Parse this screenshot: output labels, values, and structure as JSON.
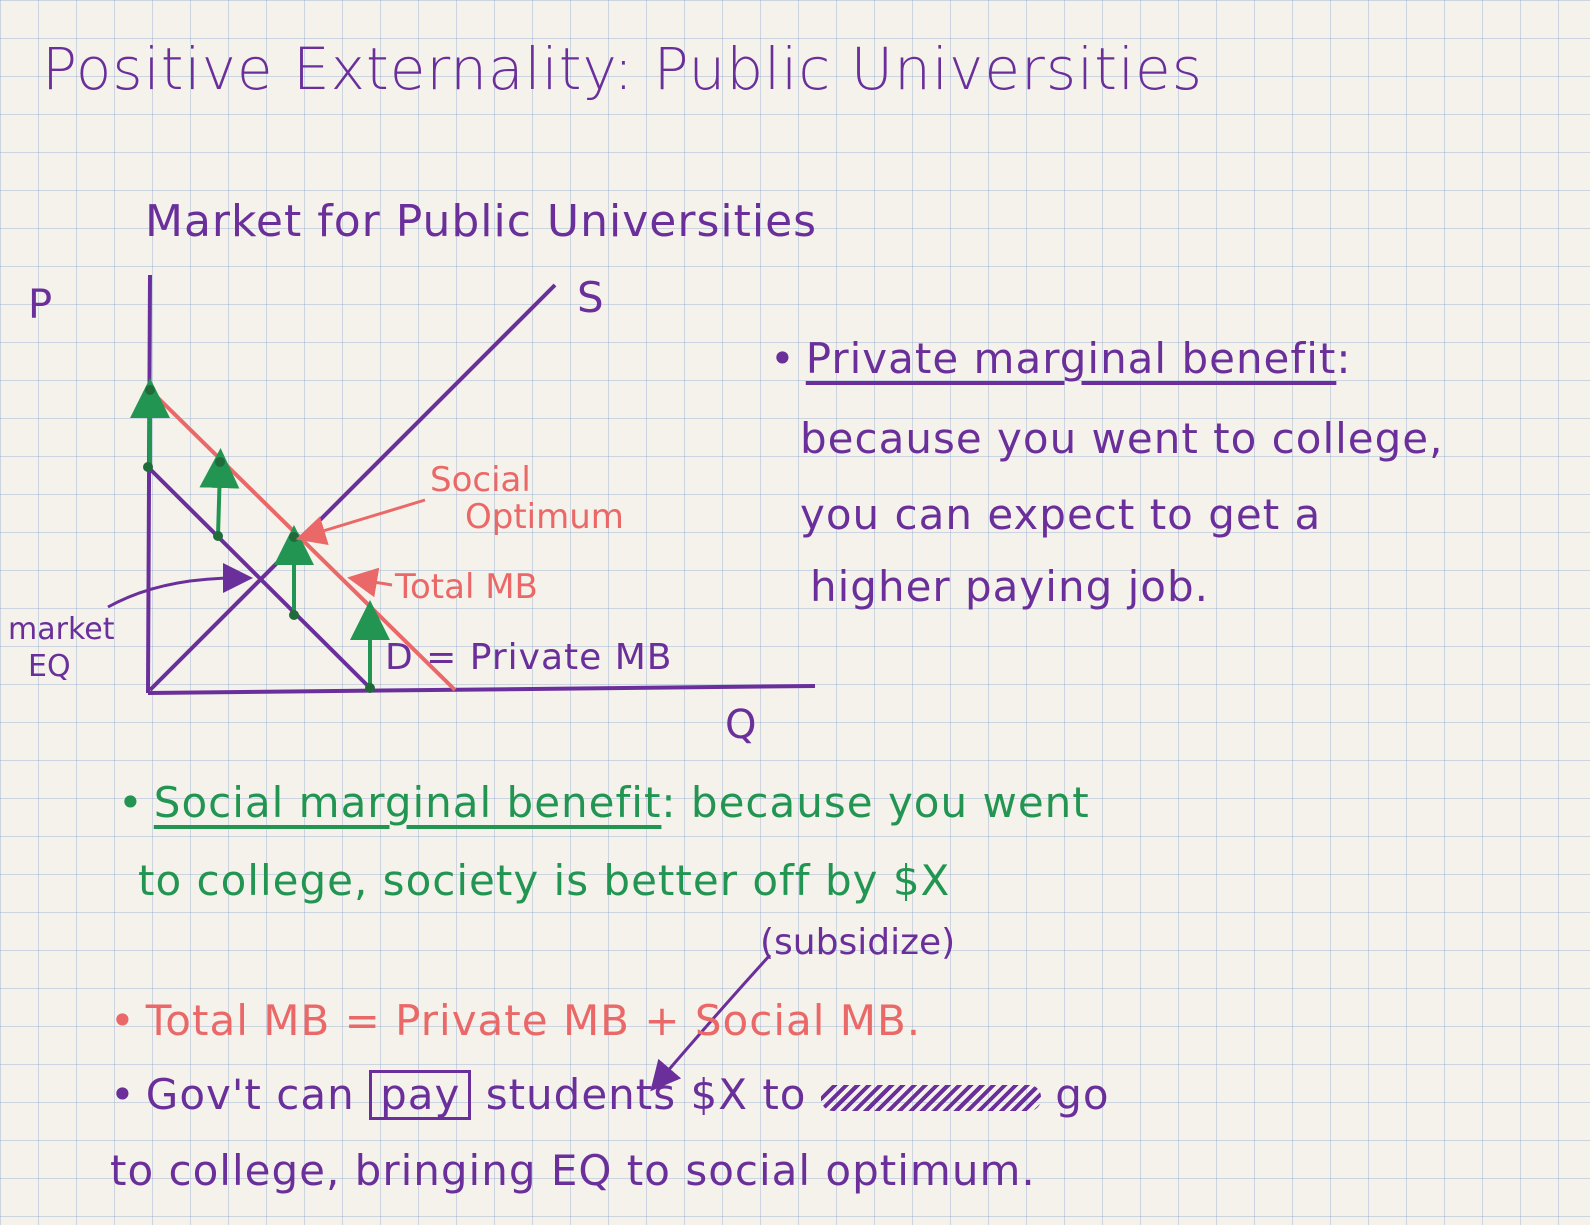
{
  "title": "Positive Externality: Public Universities",
  "graph": {
    "title": "Market for Public Universities",
    "y_axis_label": "P",
    "x_axis_label": "Q",
    "supply_label": "S",
    "demand_label": "D = Private MB",
    "total_mb_label": "Total MB",
    "social_optimum_label": [
      "Social",
      "Optimum"
    ],
    "market_eq_label": [
      "market",
      "EQ"
    ]
  },
  "notes": {
    "private": {
      "heading": "Private marginal benefit",
      "lines": [
        "because you went to college,",
        "you can expect to get a",
        "higher paying job."
      ]
    },
    "social": {
      "heading": "Social marginal benefit",
      "line1_rest": ": because you went",
      "line2": "to college, society is better off by $X"
    },
    "subsidize": "(subsidize)",
    "total": "Total MB = Private MB + Social MB.",
    "govt": {
      "before": "Gov't can",
      "boxed": "pay",
      "after": "students $X to",
      "after2": "go",
      "line2": "to college, bringing EQ to social optimum."
    }
  },
  "colors": {
    "purple": "#6a2f9a",
    "green": "#239552",
    "pink": "#ea6868"
  }
}
